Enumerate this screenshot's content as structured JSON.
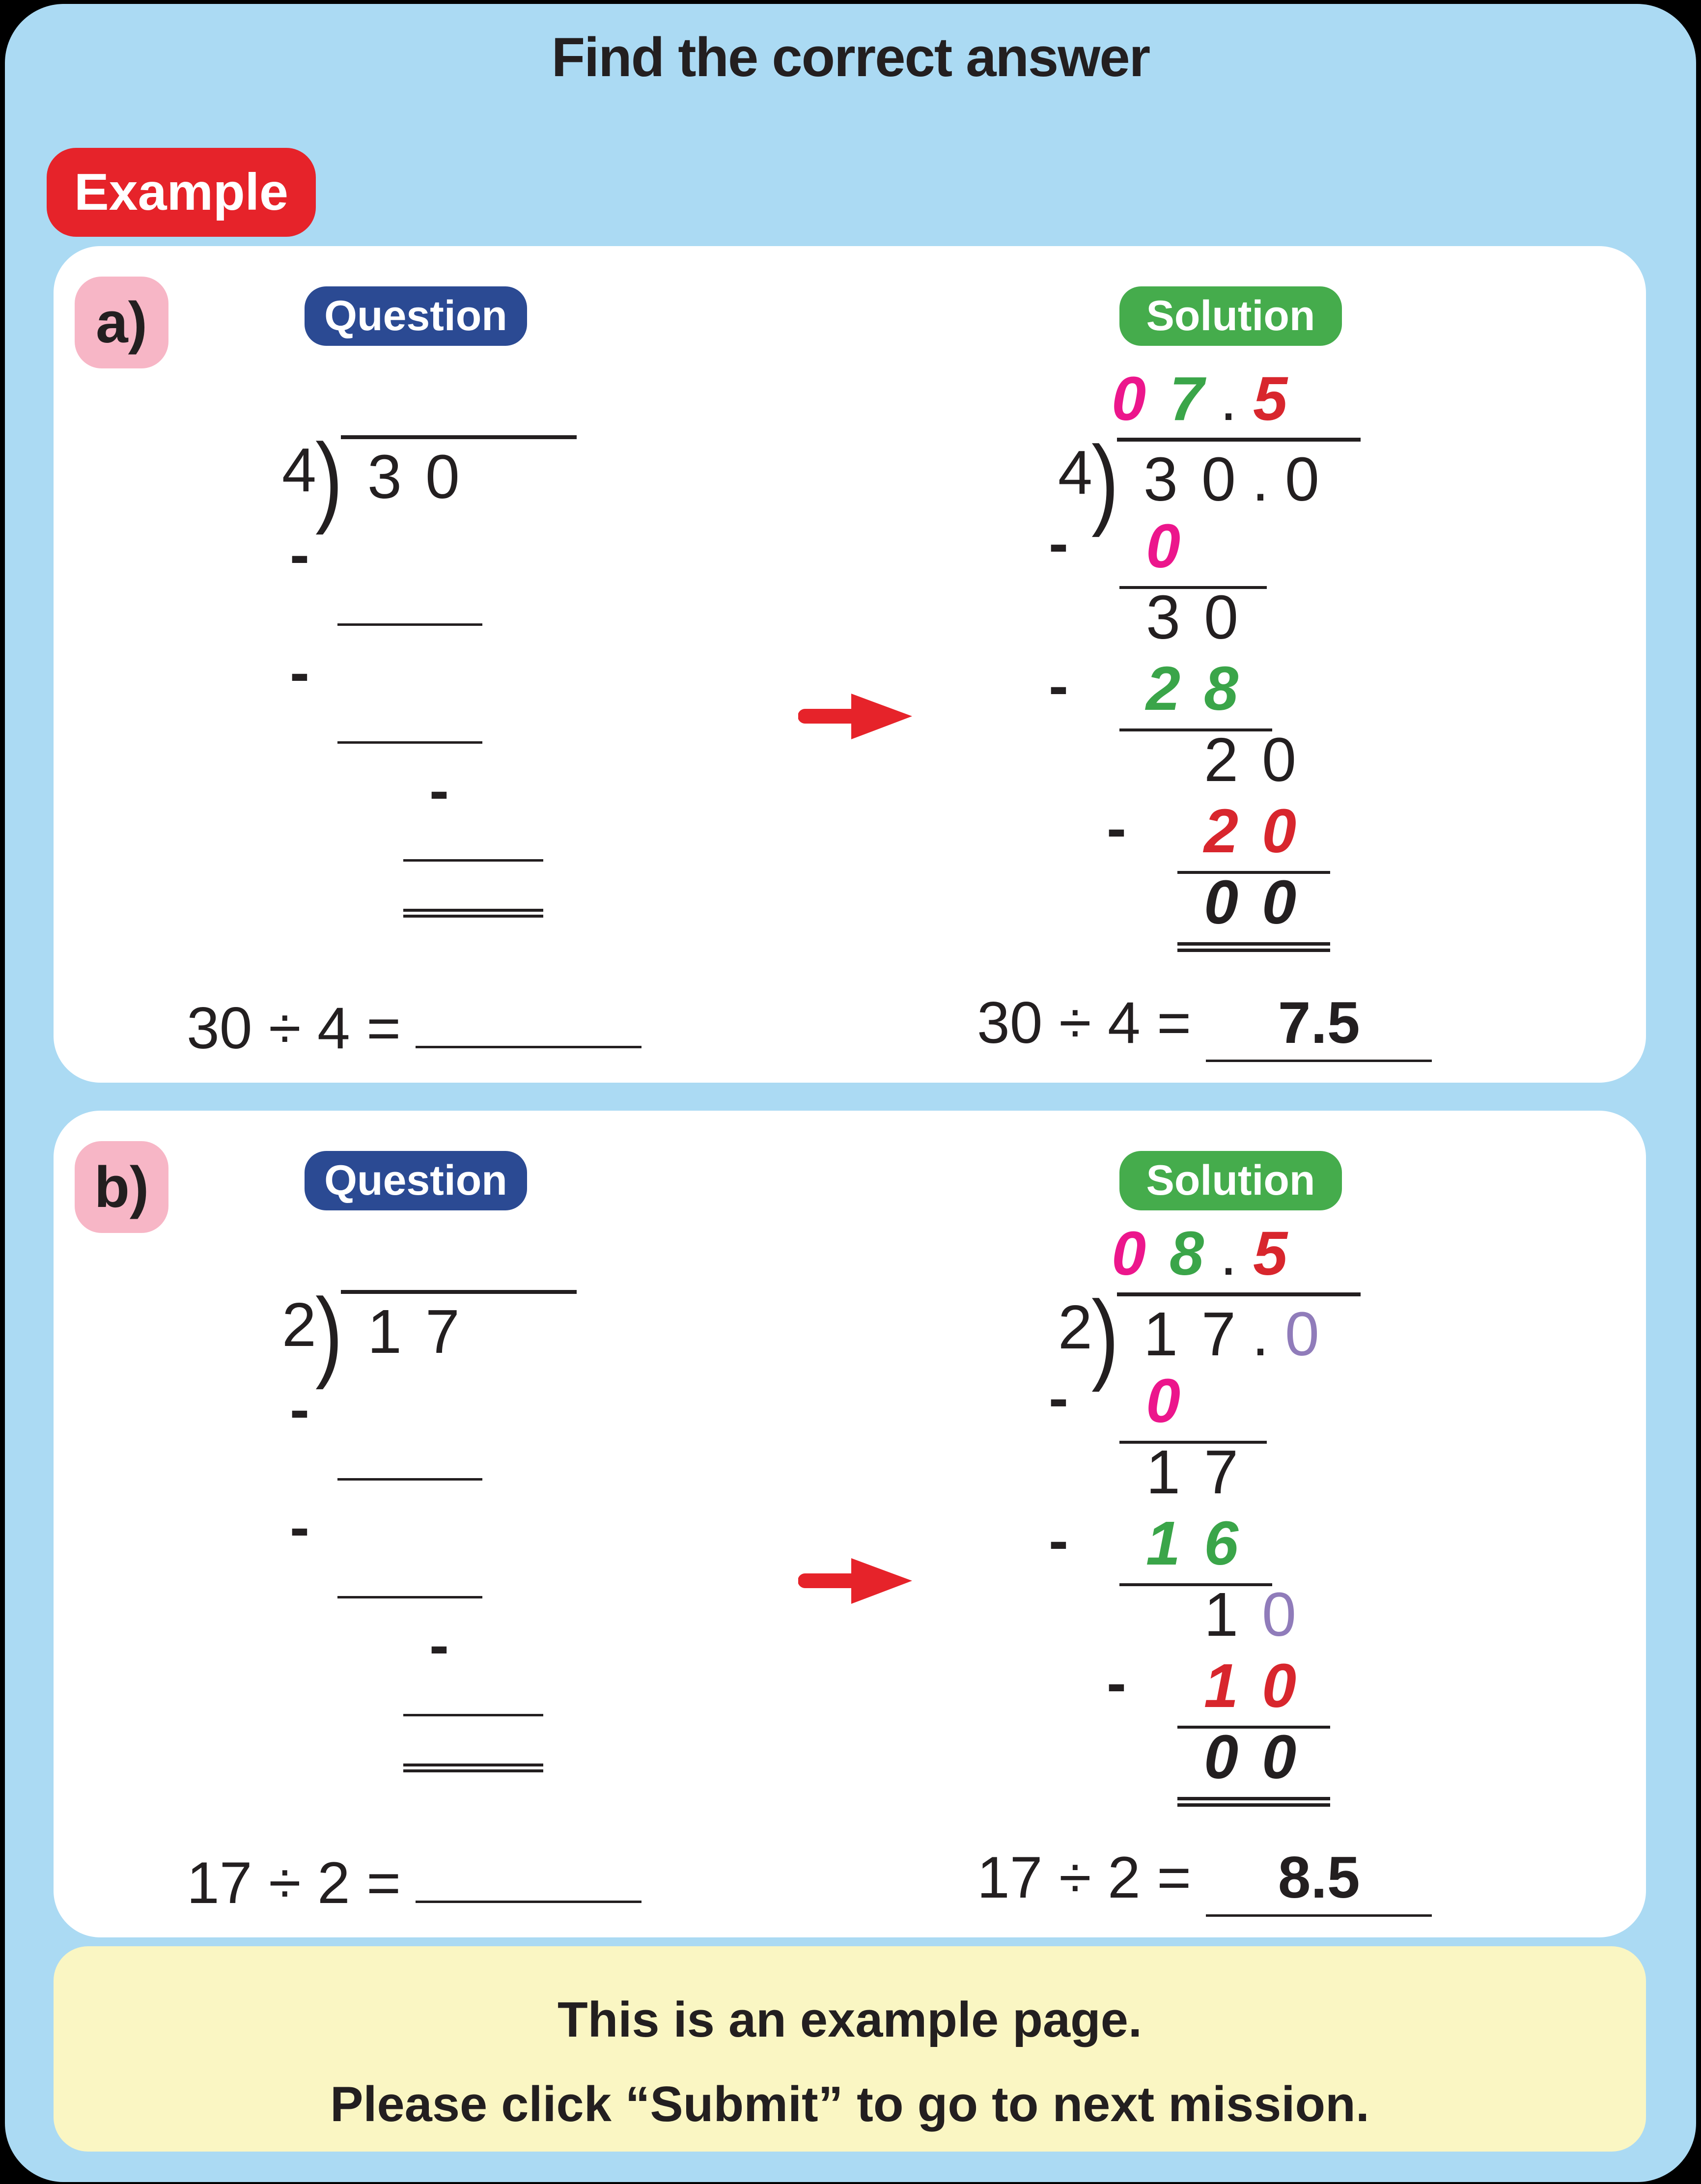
{
  "page": {
    "title": "Find the correct answer",
    "example_badge": "Example",
    "footer": {
      "line1": "This is an example page.",
      "line2": "Please click “Submit” to go to next mission."
    }
  },
  "icons": {
    "arrow": "red-arrow-icon"
  },
  "colors": {
    "background": "#abdaf3",
    "card": "#ffffff",
    "ink": "#231f20",
    "accent_red": "#e6232a",
    "badge_navy": "#2b4a93",
    "badge_green": "#45ac4c",
    "badge_pink": "#f7b6c6",
    "footer_yellow": "#faf6c3",
    "digit_magenta": "#ec168c",
    "digit_green": "#3aa549",
    "digit_red": "#d8262d",
    "digit_purple": "#907cba"
  },
  "cards": [
    {
      "label": "a)",
      "question_badge": "Question",
      "solution_badge": "Solution",
      "question": {
        "divisor": "4",
        "dividend": [
          {
            "t": "3"
          },
          {
            "t": "0"
          }
        ],
        "rows": [
          {
            "minus": true,
            "blank": true,
            "indent": 0
          },
          {
            "minus": true,
            "blank": true,
            "indent": 0
          },
          {
            "minus": true,
            "blank": true,
            "indent": 1
          },
          {
            "rule": "double",
            "indent": 1
          }
        ],
        "equation": {
          "lhs": "30 ÷ 4 =",
          "answer": ""
        }
      },
      "solution": {
        "quotient": [
          {
            "t": "0",
            "c": "magenta",
            "h": true
          },
          {
            "t": "7",
            "c": "green",
            "h": true
          },
          {
            "t": ".",
            "dot": true
          },
          {
            "t": "5",
            "c": "red",
            "h": true
          }
        ],
        "divisor": "4",
        "dividend": [
          {
            "t": "3"
          },
          {
            "t": "0"
          },
          {
            "t": ".",
            "dot": true
          },
          {
            "t": "0"
          }
        ],
        "rows": [
          {
            "minus": true,
            "digits": [
              {
                "t": "0",
                "c": "magenta",
                "h": true
              }
            ],
            "underline": true,
            "indent": 0
          },
          {
            "digits": [
              {
                "t": "3"
              },
              {
                "t": "0"
              }
            ],
            "indent": 0
          },
          {
            "minus": true,
            "digits": [
              {
                "t": "2",
                "c": "green",
                "h": true
              },
              {
                "t": "8",
                "c": "green",
                "h": true
              }
            ],
            "underline": true,
            "indent": 0
          },
          {
            "digits": [
              {
                "t": "2"
              },
              {
                "t": "0"
              }
            ],
            "indent": 1
          },
          {
            "minus": true,
            "digits": [
              {
                "t": "2",
                "c": "red",
                "h": true
              },
              {
                "t": "0",
                "c": "red",
                "h": true
              }
            ],
            "underline": true,
            "indent": 1
          },
          {
            "digits": [
              {
                "t": "0",
                "h": true
              },
              {
                "t": "0",
                "h": true
              }
            ],
            "indent": 1,
            "rule": "double"
          }
        ],
        "equation": {
          "lhs": "30 ÷ 4 =",
          "answer": "7.5"
        }
      }
    },
    {
      "label": "b)",
      "question_badge": "Question",
      "solution_badge": "Solution",
      "question": {
        "divisor": "2",
        "dividend": [
          {
            "t": "1"
          },
          {
            "t": "7"
          }
        ],
        "rows": [
          {
            "minus": true,
            "blank": true,
            "indent": 0
          },
          {
            "minus": true,
            "blank": true,
            "indent": 0
          },
          {
            "minus": true,
            "blank": true,
            "indent": 1
          },
          {
            "rule": "double",
            "indent": 1
          }
        ],
        "equation": {
          "lhs": "17 ÷ 2 =",
          "answer": ""
        }
      },
      "solution": {
        "quotient": [
          {
            "t": "0",
            "c": "magenta",
            "h": true
          },
          {
            "t": "8",
            "c": "green",
            "h": true
          },
          {
            "t": ".",
            "dot": true
          },
          {
            "t": "5",
            "c": "red",
            "h": true
          }
        ],
        "divisor": "2",
        "dividend": [
          {
            "t": "1"
          },
          {
            "t": "7"
          },
          {
            "t": ".",
            "dot": true
          },
          {
            "t": "0",
            "c": "purple"
          }
        ],
        "rows": [
          {
            "minus": true,
            "digits": [
              {
                "t": "0",
                "c": "magenta",
                "h": true
              }
            ],
            "underline": true,
            "indent": 0
          },
          {
            "digits": [
              {
                "t": "1"
              },
              {
                "t": "7"
              }
            ],
            "indent": 0
          },
          {
            "minus": true,
            "digits": [
              {
                "t": "1",
                "c": "green",
                "h": true
              },
              {
                "t": "6",
                "c": "green",
                "h": true
              }
            ],
            "underline": true,
            "indent": 0
          },
          {
            "digits": [
              {
                "t": "1"
              },
              {
                "t": "0",
                "c": "purple"
              }
            ],
            "indent": 1
          },
          {
            "minus": true,
            "digits": [
              {
                "t": "1",
                "c": "red",
                "h": true
              },
              {
                "t": "0",
                "c": "red",
                "h": true
              }
            ],
            "underline": true,
            "indent": 1
          },
          {
            "digits": [
              {
                "t": "0",
                "h": true
              },
              {
                "t": "0",
                "h": true
              }
            ],
            "indent": 1,
            "rule": "double"
          }
        ],
        "equation": {
          "lhs": "17 ÷ 2 =",
          "answer": "8.5"
        }
      }
    }
  ]
}
